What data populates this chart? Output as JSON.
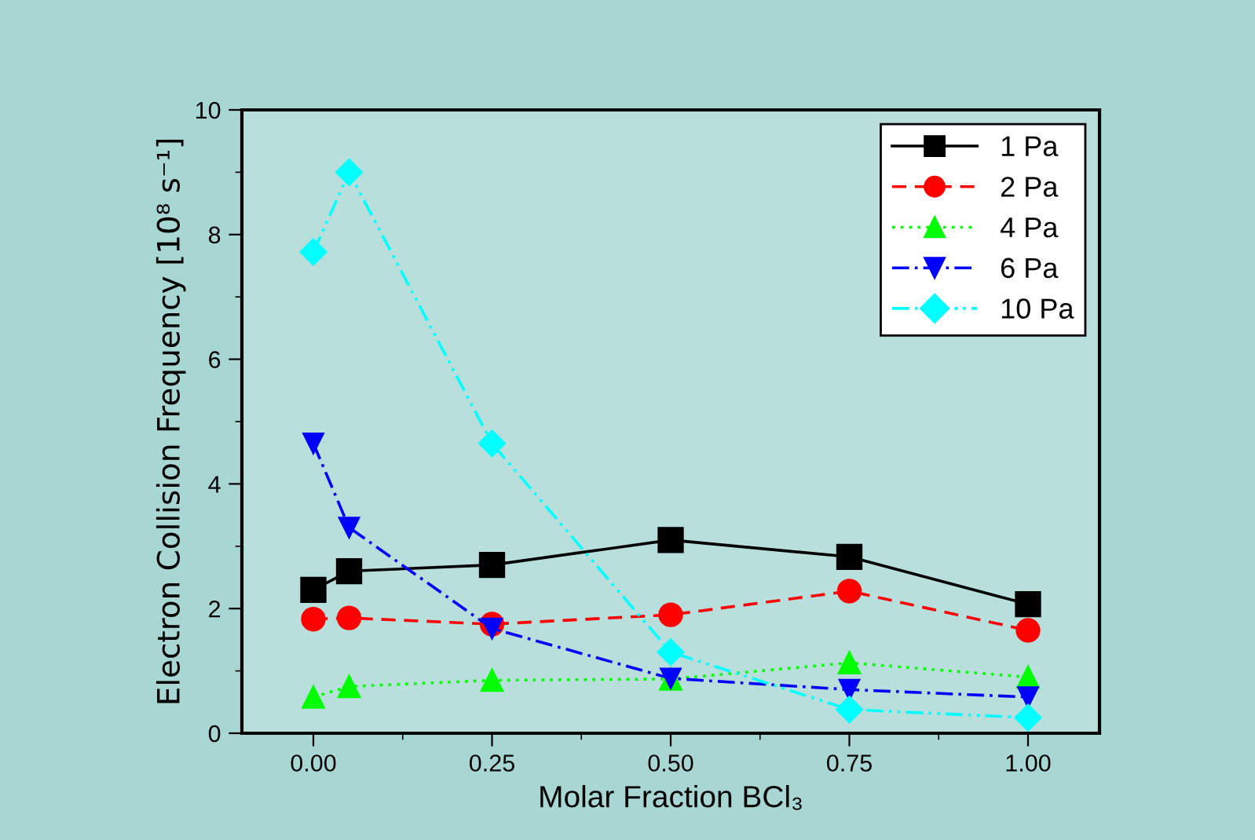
{
  "chart_data": {
    "type": "line",
    "xlabel": "Molar Fraction BCl₃",
    "ylabel": "Electron Collision Frequency [10⁸ s⁻¹]",
    "x": [
      0,
      0.05,
      0.25,
      0.5,
      0.75,
      1.0
    ],
    "series": [
      {
        "name": "1 Pa",
        "color": "#000000",
        "marker": "square",
        "line_style": "solid",
        "values": [
          2.3,
          2.6,
          2.7,
          3.1,
          2.83,
          2.07
        ]
      },
      {
        "name": "2 Pa",
        "color": "#ff0000",
        "marker": "circle",
        "line_style": "dashed",
        "values": [
          1.83,
          1.85,
          1.75,
          1.9,
          2.28,
          1.65
        ]
      },
      {
        "name": "4 Pa",
        "color": "#00ff00",
        "marker": "triangle",
        "line_style": "dotted",
        "values": [
          0.58,
          0.75,
          0.85,
          0.87,
          1.13,
          0.9
        ]
      },
      {
        "name": "6 Pa",
        "color": "#0000ff",
        "marker": "triangle_down",
        "line_style": "dashdot",
        "values": [
          4.65,
          3.3,
          1.68,
          0.88,
          0.7,
          0.58
        ]
      },
      {
        "name": "10 Pa",
        "color": "#00ffff",
        "marker": "diamond",
        "line_style": "dashdotdot",
        "values": [
          7.72,
          9.0,
          4.65,
          1.3,
          0.38,
          0.25
        ]
      }
    ],
    "xlim": [
      -0.1,
      1.1
    ],
    "xticks": [
      {
        "value": 0,
        "label": "0.00"
      },
      {
        "value": 0.125,
        "label": null
      },
      {
        "value": 0.25,
        "label": "0.25"
      },
      {
        "value": 0.375,
        "label": null
      },
      {
        "value": 0.5,
        "label": "0.50"
      },
      {
        "value": 0.625,
        "label": null
      },
      {
        "value": 0.75,
        "label": "0.75"
      },
      {
        "value": 0.875,
        "label": null
      },
      {
        "value": 1.0,
        "label": "1.00"
      }
    ],
    "ylim": [
      0,
      10
    ],
    "yticks": [
      0,
      {
        "value": 1,
        "label": null
      },
      2,
      {
        "value": 3,
        "label": null
      },
      4,
      {
        "value": 5,
        "label": null
      },
      6,
      {
        "value": 7,
        "label": null
      },
      8,
      {
        "value": 9,
        "label": null
      },
      10
    ],
    "grid": false,
    "legend": "top right"
  }
}
